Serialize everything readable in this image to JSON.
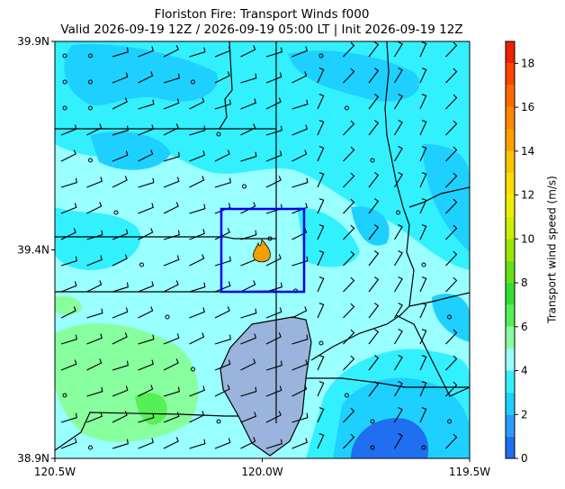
{
  "map": {
    "title": "Floriston Fire: Transport Winds f000",
    "subtitle": "Valid 2026-09-19 12Z / 2026-09-19 05:00 LT | Init 2026-09-19 12Z",
    "xlim": [
      -120.5,
      -119.5
    ],
    "ylim": [
      38.9,
      39.9
    ],
    "xticks": [
      {
        "value": -120.5,
        "label": "120.5W"
      },
      {
        "value": -120.0,
        "label": "120.0W"
      },
      {
        "value": -119.5,
        "label": "119.5W"
      }
    ],
    "yticks": [
      {
        "value": 39.9,
        "label": "39.9N"
      },
      {
        "value": 39.4,
        "label": "39.4N"
      },
      {
        "value": 38.9,
        "label": "38.9N"
      }
    ],
    "colorbar": {
      "label": "Transport wind speed (m/s)",
      "lim": [
        0,
        19
      ],
      "ticks": [
        0,
        2,
        4,
        6,
        8,
        10,
        12,
        14,
        16,
        18
      ],
      "bounds": [
        0,
        1,
        2,
        3,
        4,
        5,
        6,
        7,
        8,
        9,
        10,
        11,
        12,
        13,
        14,
        15,
        16,
        17,
        18,
        19
      ],
      "colors": [
        "#1f6ff0",
        "#2a9cff",
        "#1ed0ff",
        "#33f0ff",
        "#9affff",
        "#88ff9e",
        "#55f055",
        "#33dd33",
        "#66e01a",
        "#99e600",
        "#ccee00",
        "#eeee00",
        "#ffdd00",
        "#ffc400",
        "#ffa000",
        "#ff8800",
        "#ff6a00",
        "#ff4400",
        "#ee2200"
      ]
    }
  }
}
